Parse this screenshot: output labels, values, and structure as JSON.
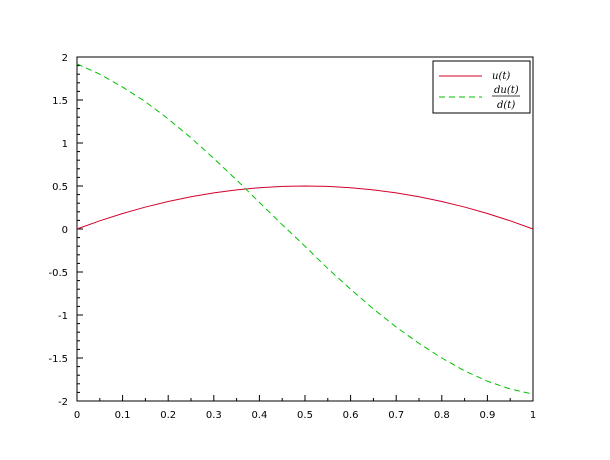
{
  "chart_data": {
    "type": "line",
    "xlim": [
      0,
      1
    ],
    "ylim": [
      -2,
      2
    ],
    "xticks": [
      0,
      0.1,
      0.2,
      0.3,
      0.4,
      0.5,
      0.6,
      0.7,
      0.8,
      0.9,
      1
    ],
    "xtick_labels": [
      "0",
      "0.1",
      "0.2",
      "0.3",
      "0.4",
      "0.5",
      "0.6",
      "0.7",
      "0.8",
      "0.9",
      "1"
    ],
    "yticks": [
      -2,
      -1.5,
      -1,
      -0.5,
      0,
      0.5,
      1,
      1.5,
      2
    ],
    "ytick_labels": [
      "-2",
      "-1.5",
      "-1",
      "-0.5",
      "0",
      "0.5",
      "1",
      "1.5",
      "2"
    ],
    "grid": false,
    "legend_position": "top-right",
    "series": [
      {
        "name": "u(t)",
        "color": "#d4002c",
        "dash": "solid",
        "x": [
          0,
          0.05,
          0.1,
          0.15,
          0.2,
          0.25,
          0.3,
          0.35,
          0.4,
          0.45,
          0.5,
          0.55,
          0.6,
          0.65,
          0.7,
          0.75,
          0.8,
          0.85,
          0.9,
          0.95,
          1
        ],
        "y": [
          0,
          0.095,
          0.18,
          0.255,
          0.32,
          0.375,
          0.42,
          0.455,
          0.48,
          0.495,
          0.5,
          0.495,
          0.48,
          0.455,
          0.42,
          0.375,
          0.32,
          0.255,
          0.18,
          0.095,
          0
        ]
      },
      {
        "name_numerator": "du(t)",
        "name_denominator": "d(t)",
        "color": "#00c000",
        "dash": "dashed",
        "x": [
          0,
          0.05,
          0.1,
          0.15,
          0.2,
          0.25,
          0.3,
          0.35,
          0.4,
          0.45,
          0.5,
          0.55,
          0.6,
          0.65,
          0.7,
          0.75,
          0.8,
          0.85,
          0.9,
          0.95,
          1
        ],
        "y": [
          1.92,
          1.8,
          1.65,
          1.48,
          1.28,
          1.06,
          0.82,
          0.57,
          0.31,
          0.05,
          -0.2,
          -0.46,
          -0.7,
          -0.93,
          -1.14,
          -1.33,
          -1.5,
          -1.65,
          -1.77,
          -1.86,
          -1.92
        ]
      }
    ]
  }
}
